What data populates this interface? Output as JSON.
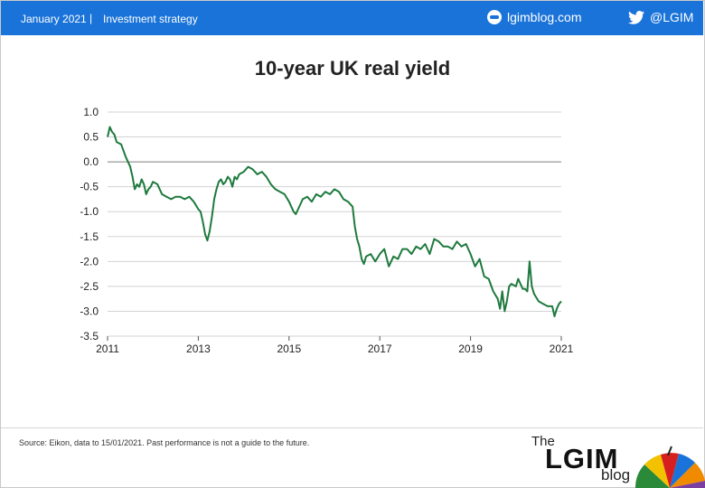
{
  "header": {
    "date": "January 2021",
    "separator": "|",
    "category": "Investment strategy",
    "site": "lgimblog.com",
    "site_icon": "globe-icon",
    "twitter": "@LGIM",
    "twitter_icon": "twitter-bird-icon",
    "color": "#1a73d9"
  },
  "chart_data": {
    "type": "line",
    "title": "10-year UK real yield",
    "xlabel": "",
    "ylabel": "",
    "xlim": [
      2011,
      2021
    ],
    "ylim": [
      -3.5,
      1.0
    ],
    "x_ticks": [
      "2011",
      "2013",
      "2015",
      "2017",
      "2019",
      "2021"
    ],
    "y_ticks": [
      "1.0",
      "0.5",
      "0.0",
      "-0.5",
      "-1.0",
      "-1.5",
      "-2.0",
      "-2.5",
      "-3.0",
      "-3.5"
    ],
    "grid": "horizontal",
    "line_color": "#1e7a3e",
    "series": [
      {
        "x": [
          2011.0,
          2011.05,
          2011.1,
          2011.15,
          2011.2,
          2011.3,
          2011.4,
          2011.5,
          2011.55,
          2011.6,
          2011.65,
          2011.7,
          2011.75,
          2011.8,
          2011.85,
          2011.9,
          2011.95,
          2012.0,
          2012.1,
          2012.2,
          2012.3,
          2012.4,
          2012.5,
          2012.6,
          2012.7,
          2012.8,
          2012.9,
          2013.0,
          2013.05,
          2013.1,
          2013.15,
          2013.2,
          2013.25,
          2013.3,
          2013.35,
          2013.4,
          2013.45,
          2013.5,
          2013.55,
          2013.6,
          2013.65,
          2013.7,
          2013.75,
          2013.8,
          2013.85,
          2013.9,
          2014.0,
          2014.1,
          2014.2,
          2014.3,
          2014.4,
          2014.5,
          2014.6,
          2014.7,
          2014.8,
          2014.9,
          2015.0,
          2015.05,
          2015.1,
          2015.15,
          2015.2,
          2015.25,
          2015.3,
          2015.4,
          2015.5,
          2015.6,
          2015.7,
          2015.8,
          2015.9,
          2016.0,
          2016.1,
          2016.2,
          2016.3,
          2016.4,
          2016.45,
          2016.5,
          2016.55,
          2016.6,
          2016.65,
          2016.7,
          2016.8,
          2016.9,
          2017.0,
          2017.1,
          2017.2,
          2017.3,
          2017.4,
          2017.5,
          2017.6,
          2017.7,
          2017.8,
          2017.9,
          2018.0,
          2018.1,
          2018.2,
          2018.3,
          2018.4,
          2018.5,
          2018.6,
          2018.7,
          2018.8,
          2018.9,
          2019.0,
          2019.1,
          2019.2,
          2019.3,
          2019.4,
          2019.5,
          2019.6,
          2019.65,
          2019.7,
          2019.75,
          2019.8,
          2019.85,
          2019.9,
          2020.0,
          2020.05,
          2020.1,
          2020.15,
          2020.2,
          2020.25,
          2020.3,
          2020.35,
          2020.4,
          2020.5,
          2020.6,
          2020.7,
          2020.8,
          2020.85,
          2020.9,
          2020.95,
          2021.0
        ],
        "y": [
          0.5,
          0.7,
          0.6,
          0.55,
          0.4,
          0.35,
          0.1,
          -0.1,
          -0.3,
          -0.55,
          -0.45,
          -0.5,
          -0.35,
          -0.45,
          -0.65,
          -0.55,
          -0.5,
          -0.4,
          -0.45,
          -0.65,
          -0.7,
          -0.75,
          -0.7,
          -0.7,
          -0.75,
          -0.7,
          -0.8,
          -0.95,
          -1.0,
          -1.2,
          -1.45,
          -1.58,
          -1.4,
          -1.1,
          -0.75,
          -0.55,
          -0.4,
          -0.35,
          -0.45,
          -0.4,
          -0.3,
          -0.35,
          -0.5,
          -0.3,
          -0.35,
          -0.25,
          -0.2,
          -0.1,
          -0.15,
          -0.25,
          -0.2,
          -0.3,
          -0.45,
          -0.55,
          -0.6,
          -0.65,
          -0.8,
          -0.9,
          -1.0,
          -1.05,
          -0.95,
          -0.85,
          -0.75,
          -0.7,
          -0.8,
          -0.65,
          -0.7,
          -0.6,
          -0.65,
          -0.55,
          -0.6,
          -0.75,
          -0.8,
          -0.9,
          -1.3,
          -1.55,
          -1.7,
          -1.95,
          -2.05,
          -1.9,
          -1.85,
          -2.0,
          -1.85,
          -1.75,
          -2.1,
          -1.9,
          -1.95,
          -1.75,
          -1.75,
          -1.85,
          -1.7,
          -1.75,
          -1.65,
          -1.85,
          -1.55,
          -1.6,
          -1.7,
          -1.7,
          -1.75,
          -1.6,
          -1.7,
          -1.65,
          -1.85,
          -2.1,
          -1.95,
          -2.3,
          -2.35,
          -2.6,
          -2.75,
          -2.95,
          -2.6,
          -3.0,
          -2.8,
          -2.5,
          -2.45,
          -2.5,
          -2.35,
          -2.45,
          -2.55,
          -2.55,
          -2.6,
          -2.0,
          -2.5,
          -2.65,
          -2.8,
          -2.85,
          -2.9,
          -2.9,
          -3.1,
          -2.95,
          -2.85,
          -2.8
        ]
      }
    ]
  },
  "footer": {
    "source": "Source: Eikon, data to 15/01/2021. Past performance is not a guide to the future.",
    "logo_the": "The",
    "logo_main": "LGIM",
    "logo_blog": "blog",
    "logo_icon": "umbrella-icon"
  }
}
